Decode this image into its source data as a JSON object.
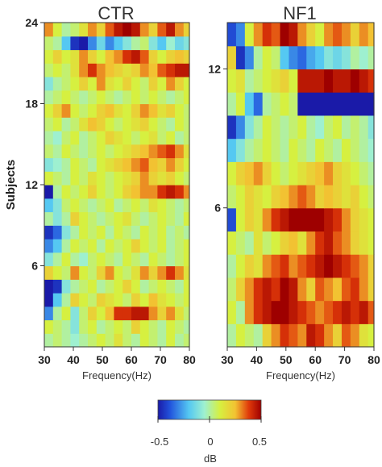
{
  "chart_data": [
    {
      "type": "heatmap",
      "title": "CTR",
      "xlabel": "Frequency(Hz)",
      "ylabel": "Subjects",
      "xlim": [
        30,
        80
      ],
      "ylim": [
        0,
        24
      ],
      "xticks": [
        30,
        40,
        50,
        60,
        70,
        80
      ],
      "yticks": [
        6,
        12,
        18,
        24
      ],
      "x_bins": [
        30,
        33,
        36,
        39,
        42,
        45,
        48,
        51,
        54,
        57,
        60,
        63,
        66,
        69,
        72,
        75,
        78
      ],
      "subjects": [
        1,
        2,
        3,
        4,
        5,
        6,
        7,
        8,
        9,
        10,
        11,
        12,
        13,
        14,
        15,
        16,
        17,
        18,
        19,
        20,
        21,
        22,
        23,
        24
      ],
      "values": [
        [
          0.0,
          0.05,
          0.0,
          -0.05,
          0.0,
          0.05,
          0.1,
          0.05,
          0.15,
          0.05,
          0.0,
          0.1,
          0.05,
          0.0,
          0.1,
          0.0,
          0.05
        ],
        [
          0.1,
          0.05,
          0.0,
          -0.1,
          0.05,
          0.1,
          0.0,
          0.05,
          0.1,
          0.05,
          0.2,
          0.1,
          0.05,
          0.0,
          0.1,
          0.05,
          0.0
        ],
        [
          -0.3,
          0.0,
          0.1,
          -0.1,
          0.05,
          0.2,
          0.1,
          0.25,
          0.4,
          0.4,
          0.45,
          0.45,
          0.3,
          0.2,
          0.3,
          0.15,
          0.05
        ],
        [
          -0.5,
          -0.2,
          0.0,
          0.2,
          0.1,
          0.05,
          0.2,
          0.15,
          0.1,
          0.05,
          0.2,
          0.1,
          0.25,
          0.15,
          0.1,
          0.05,
          0.1
        ],
        [
          -0.5,
          -0.45,
          -0.1,
          0.0,
          0.05,
          0.1,
          0.0,
          0.05,
          0.1,
          0.2,
          0.1,
          0.0,
          0.05,
          0.1,
          0.05,
          0.0,
          0.1
        ],
        [
          0.2,
          0.1,
          0.05,
          0.3,
          0.1,
          0.05,
          0.2,
          0.3,
          0.1,
          0.05,
          0.15,
          0.3,
          0.2,
          0.3,
          0.4,
          0.3,
          0.15
        ],
        [
          -0.1,
          0.0,
          0.1,
          0.0,
          -0.05,
          0.05,
          0.1,
          0.05,
          0.0,
          0.1,
          0.05,
          0.0,
          0.1,
          0.05,
          0.0,
          0.05,
          0.1
        ],
        [
          -0.3,
          -0.2,
          0.0,
          0.1,
          0.05,
          0.1,
          0.0,
          0.1,
          0.05,
          0.1,
          0.2,
          0.1,
          0.05,
          0.1,
          0.0,
          0.05,
          0.1
        ],
        [
          -0.45,
          -0.35,
          -0.1,
          0.0,
          0.1,
          0.05,
          0.1,
          0.0,
          0.1,
          0.05,
          0.0,
          0.1,
          0.05,
          0.1,
          0.0,
          0.05,
          0.0
        ],
        [
          0.0,
          -0.1,
          0.0,
          0.2,
          0.1,
          0.05,
          0.0,
          0.05,
          0.1,
          0.15,
          0.05,
          0.0,
          0.05,
          0.1,
          0.05,
          0.0,
          0.1
        ],
        [
          -0.2,
          -0.1,
          0.05,
          0.1,
          0.05,
          0.0,
          0.05,
          0.1,
          0.0,
          0.05,
          0.1,
          0.05,
          0.15,
          0.1,
          0.05,
          0.0,
          0.05
        ],
        [
          -0.5,
          0.0,
          0.1,
          0.05,
          0.1,
          0.2,
          0.1,
          0.05,
          0.1,
          0.2,
          0.25,
          0.3,
          0.3,
          0.4,
          0.45,
          0.4,
          0.3
        ],
        [
          0.1,
          0.05,
          0.0,
          0.1,
          0.05,
          0.15,
          0.1,
          0.05,
          0.1,
          0.15,
          0.2,
          0.3,
          0.2,
          0.15,
          0.2,
          0.1,
          0.05
        ],
        [
          -0.1,
          -0.05,
          0.0,
          0.1,
          0.05,
          0.0,
          0.1,
          0.15,
          0.2,
          0.25,
          0.3,
          0.35,
          0.25,
          0.2,
          0.3,
          0.2,
          0.1
        ],
        [
          0.05,
          0.0,
          0.1,
          0.05,
          0.0,
          0.05,
          0.1,
          0.05,
          0.1,
          0.15,
          0.2,
          0.25,
          0.3,
          0.35,
          0.4,
          0.3,
          0.15
        ],
        [
          0.0,
          -0.05,
          0.05,
          0.1,
          0.0,
          0.05,
          0.1,
          0.2,
          0.15,
          0.1,
          0.05,
          0.1,
          0.15,
          0.05,
          0.1,
          0.0,
          0.05
        ],
        [
          0.05,
          0.1,
          0.0,
          0.05,
          0.15,
          0.25,
          0.2,
          0.1,
          0.05,
          0.1,
          0.15,
          0.2,
          0.1,
          0.05,
          0.0,
          0.1,
          0.05
        ],
        [
          0.1,
          0.2,
          0.3,
          0.1,
          0.05,
          0.1,
          0.2,
          0.25,
          0.15,
          0.1,
          0.2,
          0.3,
          0.25,
          0.15,
          0.2,
          0.1,
          0.05
        ],
        [
          0.0,
          0.05,
          0.1,
          0.05,
          0.0,
          0.05,
          0.1,
          0.05,
          0.0,
          0.05,
          0.1,
          0.05,
          0.1,
          0.05,
          0.0,
          0.05,
          0.1
        ],
        [
          -0.1,
          0.0,
          0.05,
          0.1,
          0.2,
          0.1,
          0.3,
          0.15,
          0.1,
          0.2,
          0.1,
          0.05,
          0.2,
          0.1,
          0.3,
          0.2,
          0.1
        ],
        [
          0.05,
          0.1,
          0.05,
          0.15,
          0.3,
          0.4,
          0.3,
          0.25,
          0.2,
          0.15,
          0.2,
          0.3,
          0.25,
          0.35,
          0.4,
          0.45,
          0.45
        ],
        [
          0.1,
          0.2,
          0.1,
          0.15,
          0.3,
          0.2,
          0.1,
          0.25,
          0.3,
          0.4,
          0.45,
          0.35,
          0.2,
          0.1,
          0.2,
          0.25,
          0.2
        ],
        [
          0.05,
          0.0,
          -0.2,
          -0.45,
          -0.5,
          -0.3,
          -0.15,
          -0.3,
          -0.2,
          -0.1,
          0.0,
          0.05,
          -0.1,
          -0.2,
          -0.05,
          -0.15,
          -0.1
        ],
        [
          0.3,
          0.1,
          0.0,
          0.05,
          0.15,
          0.3,
          0.2,
          0.35,
          0.45,
          0.5,
          0.45,
          0.3,
          0.2,
          0.35,
          0.45,
          0.3,
          0.2
        ]
      ]
    },
    {
      "type": "heatmap",
      "title": "NF1",
      "xlabel": "Frequency(Hz)",
      "xlim": [
        30,
        80
      ],
      "ylim": [
        0,
        14
      ],
      "xticks": [
        30,
        40,
        50,
        60,
        70,
        80
      ],
      "yticks": [
        6,
        12
      ],
      "x_bins": [
        30,
        33,
        36,
        39,
        42,
        45,
        48,
        51,
        54,
        57,
        60,
        63,
        66,
        69,
        72,
        75,
        78
      ],
      "subjects": [
        1,
        2,
        3,
        4,
        5,
        6,
        7,
        8,
        9,
        10,
        11,
        12,
        13,
        14
      ],
      "values": [
        [
          0.0,
          0.1,
          0.05,
          0.0,
          0.2,
          0.3,
          0.4,
          0.35,
          0.3,
          0.45,
          0.4,
          0.3,
          0.2,
          0.35,
          0.3,
          0.15,
          0.1
        ],
        [
          0.1,
          0.0,
          0.3,
          0.4,
          0.45,
          0.5,
          0.5,
          0.45,
          0.4,
          0.35,
          0.3,
          0.35,
          0.4,
          0.45,
          0.4,
          0.45,
          0.35
        ],
        [
          0.05,
          0.2,
          0.3,
          0.4,
          0.45,
          0.4,
          0.5,
          0.45,
          0.3,
          0.2,
          0.35,
          0.3,
          0.25,
          0.35,
          0.4,
          0.3,
          0.2
        ],
        [
          0.0,
          0.1,
          0.2,
          0.15,
          0.3,
          0.35,
          0.4,
          0.3,
          0.35,
          0.4,
          0.45,
          0.5,
          0.45,
          0.4,
          0.35,
          0.3,
          0.2
        ],
        [
          0.1,
          0.05,
          0.0,
          0.15,
          0.05,
          0.1,
          0.2,
          0.25,
          0.15,
          0.3,
          0.4,
          0.45,
          0.35,
          0.3,
          0.2,
          0.15,
          0.1
        ],
        [
          -0.4,
          0.1,
          0.2,
          0.15,
          0.3,
          0.4,
          0.45,
          0.5,
          0.5,
          0.5,
          0.5,
          0.45,
          0.4,
          0.3,
          0.2,
          0.15,
          0.1
        ],
        [
          0.05,
          0.1,
          0.2,
          0.15,
          0.1,
          0.2,
          0.25,
          0.3,
          0.35,
          0.3,
          0.2,
          0.25,
          0.2,
          0.15,
          0.2,
          0.1,
          0.05
        ],
        [
          0.1,
          0.2,
          0.25,
          0.3,
          0.2,
          0.1,
          0.05,
          0.1,
          0.15,
          0.2,
          0.25,
          0.3,
          0.2,
          0.15,
          0.1,
          0.05,
          0.0
        ],
        [
          -0.2,
          -0.1,
          0.0,
          0.05,
          0.1,
          0.05,
          0.0,
          0.1,
          0.05,
          0.0,
          0.1,
          0.05,
          0.0,
          0.1,
          0.05,
          0.0,
          -0.05
        ],
        [
          -0.45,
          -0.3,
          -0.1,
          0.0,
          0.1,
          0.05,
          0.0,
          0.05,
          0.1,
          0.0,
          -0.05,
          0.05,
          0.1,
          0.0,
          0.05,
          0.0,
          -0.1
        ],
        [
          0.0,
          0.1,
          -0.2,
          -0.35,
          0.0,
          0.05,
          0.1,
          0.05,
          -0.5,
          -0.5,
          -0.5,
          -0.5,
          -0.5,
          -0.5,
          -0.5,
          -0.5,
          -0.5
        ],
        [
          0.1,
          0.15,
          0.0,
          0.05,
          0.1,
          0.15,
          0.2,
          0.1,
          0.45,
          0.45,
          0.45,
          0.5,
          0.45,
          0.45,
          0.5,
          0.45,
          0.4
        ],
        [
          0.2,
          -0.45,
          -0.3,
          0.0,
          0.1,
          0.05,
          -0.2,
          -0.3,
          -0.35,
          -0.25,
          -0.2,
          -0.1,
          -0.15,
          -0.1,
          0.0,
          -0.05,
          0.0
        ],
        [
          -0.4,
          -0.3,
          0.1,
          0.3,
          0.4,
          0.35,
          0.5,
          0.45,
          0.3,
          0.2,
          0.1,
          0.3,
          0.35,
          0.3,
          0.2,
          0.3,
          0.25
        ]
      ]
    }
  ],
  "colorbar": {
    "label": "dB",
    "min": -0.5,
    "max": 0.5,
    "ticks": [
      "-0.5",
      "0",
      "0.5"
    ]
  }
}
